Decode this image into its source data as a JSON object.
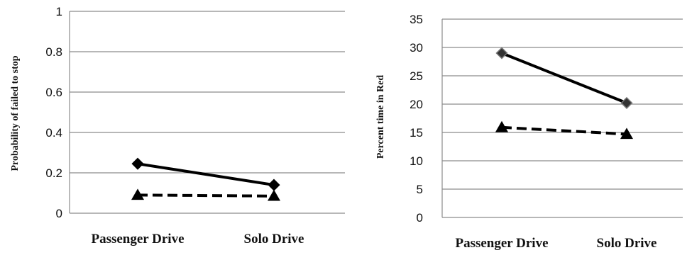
{
  "chart_data": [
    {
      "type": "line",
      "categories": [
        "Passenger Drive",
        "Solo Drive"
      ],
      "ylabel": "Probability of failed to stop",
      "ylim": [
        0,
        1
      ],
      "yticks": [
        0,
        0.2,
        0.4,
        0.6,
        0.8,
        1
      ],
      "ytick_labels": [
        "0",
        "0.2",
        "0.4",
        "0.6",
        "0.8",
        "1"
      ],
      "grid": true,
      "series": [
        {
          "values": [
            0.245,
            0.14
          ],
          "marker": "diamond",
          "line_style": "solid"
        },
        {
          "values": [
            0.09,
            0.085
          ],
          "marker": "triangle",
          "line_style": "dashed"
        }
      ]
    },
    {
      "type": "line",
      "categories": [
        "Passenger Drive",
        "Solo Drive"
      ],
      "ylabel": "Percent time in Red",
      "ylim": [
        0,
        35
      ],
      "yticks": [
        0,
        5,
        10,
        15,
        20,
        25,
        30,
        35
      ],
      "ytick_labels": [
        "0",
        "5",
        "10",
        "15",
        "20",
        "25",
        "30",
        "35"
      ],
      "grid": true,
      "series": [
        {
          "values": [
            29,
            20.2
          ],
          "marker": "diamond",
          "line_style": "solid"
        },
        {
          "values": [
            15.9,
            14.7
          ],
          "marker": "triangle",
          "line_style": "dashed"
        }
      ]
    }
  ]
}
